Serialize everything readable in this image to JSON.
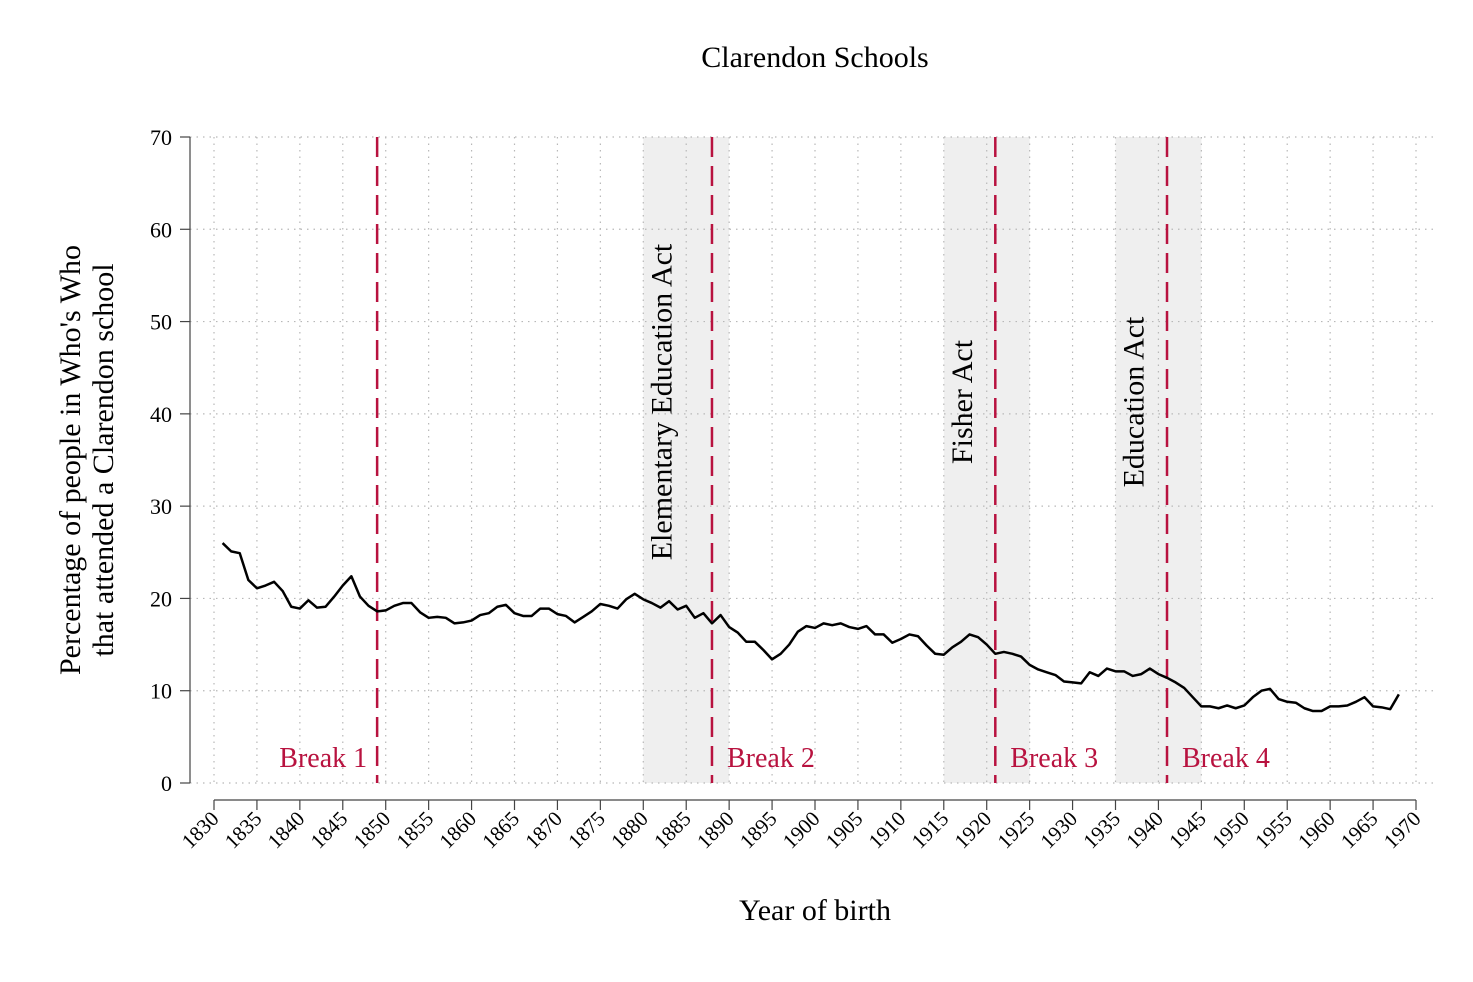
{
  "chart_data": {
    "type": "line",
    "title": "Clarendon Schools",
    "xlabel": "Year of birth",
    "ylabel": [
      "Percentage of people in Who's Who",
      "that attended a Clarendon school"
    ],
    "xlim": [
      1830,
      1970
    ],
    "ylim": [
      0,
      70
    ],
    "xticks": [
      1830,
      1835,
      1840,
      1845,
      1850,
      1855,
      1860,
      1865,
      1870,
      1875,
      1880,
      1885,
      1890,
      1895,
      1900,
      1905,
      1910,
      1915,
      1920,
      1925,
      1930,
      1935,
      1940,
      1945,
      1950,
      1955,
      1960,
      1965,
      1970
    ],
    "yticks": [
      0,
      10,
      20,
      30,
      40,
      50,
      60,
      70
    ],
    "grid": true,
    "x": [
      1831,
      1832,
      1833,
      1834,
      1835,
      1836,
      1837,
      1838,
      1839,
      1840,
      1841,
      1842,
      1843,
      1844,
      1845,
      1846,
      1847,
      1848,
      1849,
      1850,
      1851,
      1852,
      1853,
      1854,
      1855,
      1856,
      1857,
      1858,
      1859,
      1860,
      1861,
      1862,
      1863,
      1864,
      1865,
      1866,
      1867,
      1868,
      1869,
      1870,
      1871,
      1872,
      1873,
      1874,
      1875,
      1876,
      1877,
      1878,
      1879,
      1880,
      1881,
      1882,
      1883,
      1884,
      1885,
      1886,
      1887,
      1888,
      1889,
      1890,
      1891,
      1892,
      1893,
      1894,
      1895,
      1896,
      1897,
      1898,
      1899,
      1900,
      1901,
      1902,
      1903,
      1904,
      1905,
      1906,
      1907,
      1908,
      1909,
      1910,
      1911,
      1912,
      1913,
      1914,
      1915,
      1916,
      1917,
      1918,
      1919,
      1920,
      1921,
      1922,
      1923,
      1924,
      1925,
      1926,
      1927,
      1928,
      1929,
      1930,
      1931,
      1932,
      1933,
      1934,
      1935,
      1936,
      1937,
      1938,
      1939,
      1940,
      1941,
      1942,
      1943,
      1944,
      1945,
      1946,
      1947,
      1948,
      1949,
      1950,
      1951,
      1952,
      1953,
      1954,
      1955,
      1956,
      1957,
      1958,
      1959,
      1960,
      1961,
      1962,
      1963,
      1964,
      1965,
      1966,
      1967,
      1968
    ],
    "series": [
      {
        "color": "#000000",
        "values": [
          26.0,
          25.1,
          24.9,
          22.0,
          21.1,
          21.4,
          21.8,
          20.8,
          19.1,
          18.9,
          19.8,
          19.0,
          19.1,
          20.2,
          21.4,
          22.4,
          20.2,
          19.2,
          18.6,
          18.7,
          19.2,
          19.5,
          19.5,
          18.5,
          17.9,
          18.0,
          17.9,
          17.3,
          17.4,
          17.6,
          18.2,
          18.4,
          19.1,
          19.3,
          18.4,
          18.1,
          18.1,
          18.9,
          18.9,
          18.3,
          18.1,
          17.4,
          18.0,
          18.6,
          19.4,
          19.2,
          18.9,
          19.9,
          20.5,
          19.9,
          19.5,
          19.0,
          19.7,
          18.8,
          19.2,
          17.9,
          18.4,
          17.3,
          18.2,
          16.9,
          16.3,
          15.3,
          15.3,
          14.4,
          13.4,
          14.0,
          15.0,
          16.4,
          17.0,
          16.8,
          17.3,
          17.1,
          17.3,
          16.9,
          16.7,
          17.0,
          16.1,
          16.1,
          15.2,
          15.6,
          16.1,
          15.9,
          14.9,
          14.0,
          13.9,
          14.7,
          15.3,
          16.1,
          15.8,
          15.0,
          14.0,
          14.2,
          14.0,
          13.7,
          12.8,
          12.3,
          12.0,
          11.7,
          11.0,
          10.9,
          10.8,
          12.0,
          11.6,
          12.4,
          12.1,
          12.1,
          11.6,
          11.8,
          12.4,
          11.8,
          11.4,
          10.9,
          10.3,
          9.3,
          8.3,
          8.3,
          8.1,
          8.4,
          8.1,
          8.4,
          9.3,
          10.0,
          10.2,
          9.1,
          8.8,
          8.7,
          8.1,
          7.8,
          7.8,
          8.3,
          8.3,
          8.4,
          8.8,
          9.3,
          8.3,
          8.2,
          8.0,
          9.6
        ]
      }
    ],
    "shaded_regions": [
      {
        "start": 1880,
        "end": 1890,
        "label": "Elementary Education Act",
        "color": "#efefef"
      },
      {
        "start": 1915,
        "end": 1925,
        "label": "Fisher Act",
        "color": "#efefef"
      },
      {
        "start": 1935,
        "end": 1945,
        "label": "Education Act",
        "color": "#efefef"
      }
    ],
    "breaks": [
      {
        "x": 1849,
        "label": "Break 1"
      },
      {
        "x": 1888,
        "label": "Break 2"
      },
      {
        "x": 1921,
        "label": "Break 3"
      },
      {
        "x": 1941,
        "label": "Break 4"
      }
    ],
    "break_color": "#b8123f"
  }
}
